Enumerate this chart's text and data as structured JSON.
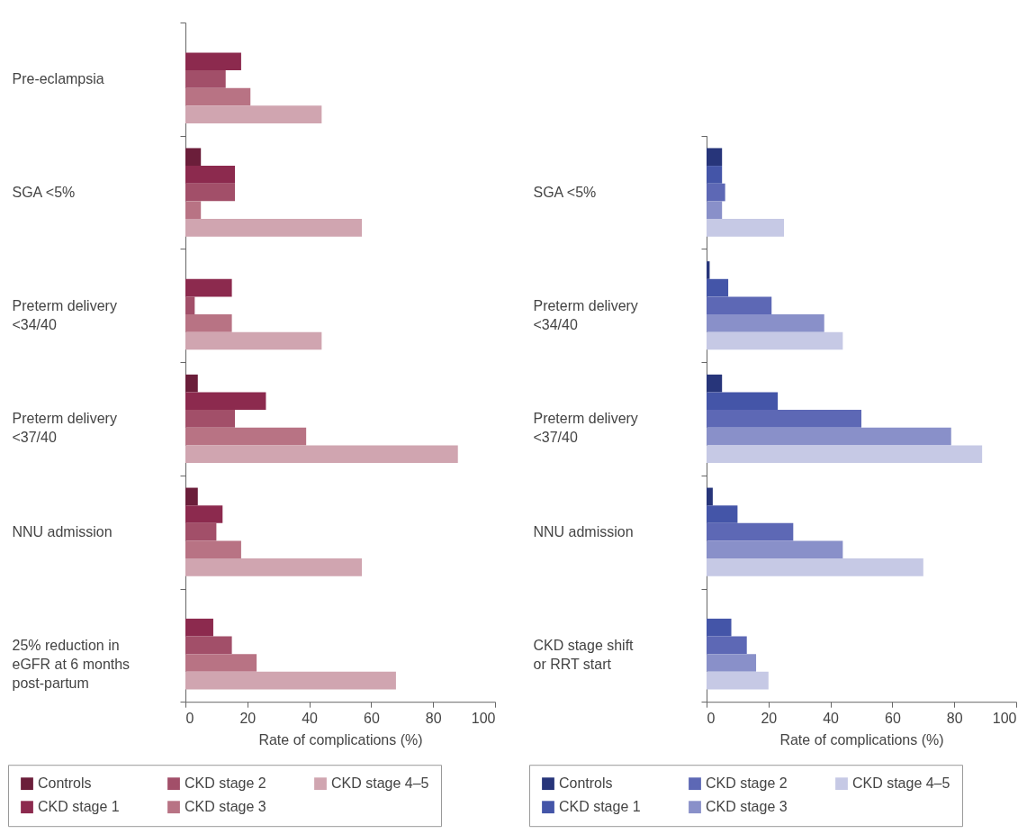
{
  "chart_data": [
    {
      "type": "bar",
      "orientation": "horizontal",
      "xlabel": "Rate of complications (%)",
      "categories": [
        "Pre-eclampsia",
        "SGA <5%",
        "Preterm delivery <34/40",
        "Preterm delivery <37/40",
        "NNU admission",
        "25% reduction in eGFR at 6 months post-partum"
      ],
      "series": [
        {
          "name": "Controls",
          "color": "#6b1e3a",
          "values": [
            null,
            5,
            null,
            4,
            4,
            null
          ]
        },
        {
          "name": "CKD stage 1",
          "color": "#8c2a4e",
          "values": [
            18,
            16,
            15,
            26,
            12,
            9
          ]
        },
        {
          "name": "CKD stage 2",
          "color": "#a24f69",
          "values": [
            13,
            16,
            3,
            16,
            10,
            15
          ]
        },
        {
          "name": "CKD stage 3",
          "color": "#b87384",
          "values": [
            21,
            5,
            15,
            39,
            18,
            23
          ]
        },
        {
          "name": "CKD stage 4–5",
          "color": "#d0a5b0",
          "values": [
            44,
            57,
            44,
            88,
            57,
            68
          ]
        }
      ],
      "xlim": [
        0,
        100
      ],
      "xticks": [
        0,
        20,
        40,
        60,
        80,
        100
      ],
      "legend": "bottom"
    },
    {
      "type": "bar",
      "orientation": "horizontal",
      "xlabel": "Rate of complications (%)",
      "categories": [
        "SGA <5%",
        "Preterm delivery <34/40",
        "Preterm delivery <37/40",
        "NNU admission",
        "CKD stage shift or RRT start"
      ],
      "series": [
        {
          "name": "Controls",
          "color": "#27357a",
          "values": [
            5,
            1,
            5,
            2,
            null
          ]
        },
        {
          "name": "CKD stage 1",
          "color": "#4455a8",
          "values": [
            5,
            7,
            23,
            10,
            8
          ]
        },
        {
          "name": "CKD stage 2",
          "color": "#5d68b5",
          "values": [
            6,
            21,
            50,
            28,
            13
          ]
        },
        {
          "name": "CKD stage 3",
          "color": "#8990c9",
          "values": [
            5,
            38,
            79,
            44,
            16
          ]
        },
        {
          "name": "CKD stage 4–5",
          "color": "#c6c9e5",
          "values": [
            25,
            44,
            89,
            70,
            20
          ]
        }
      ],
      "xlim": [
        0,
        100
      ],
      "xticks": [
        0,
        20,
        40,
        60,
        80,
        100
      ],
      "legend": "bottom"
    }
  ]
}
